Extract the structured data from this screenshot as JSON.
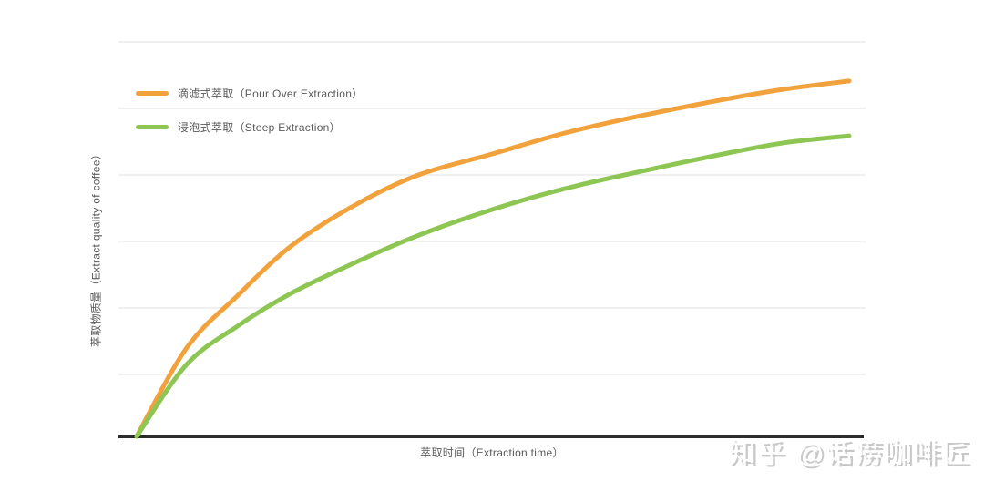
{
  "chart_data": {
    "type": "line",
    "title": "",
    "xlabel": "萃取时间（Extraction time）",
    "ylabel": "萃取物质量（Extract quality of coffee）",
    "x_ticks": [],
    "y_ticks": [],
    "axis_note": "qualitative chart: no tick labels; values normalized 0-1 of plot range",
    "grid": "6 horizontal gridlines, no vertical gridlines, thick black x-axis baseline",
    "legend_position": "top-left inside plot",
    "x_range_norm": [
      0,
      1
    ],
    "y_range_norm": [
      0,
      1
    ],
    "series": [
      {
        "name": "滴滤式萃取（Pour Over Extraction）",
        "color": "#F2A23C",
        "points": [
          [
            0.0,
            0.0
          ],
          [
            0.07,
            0.224
          ],
          [
            0.141,
            0.356
          ],
          [
            0.217,
            0.483
          ],
          [
            0.307,
            0.587
          ],
          [
            0.396,
            0.663
          ],
          [
            0.499,
            0.716
          ],
          [
            0.601,
            0.769
          ],
          [
            0.703,
            0.811
          ],
          [
            0.818,
            0.852
          ],
          [
            0.908,
            0.88
          ],
          [
            1.0,
            0.901
          ]
        ]
      },
      {
        "name": "浸泡式萃取（Steep Extraction）",
        "color": "#8DC653",
        "points": [
          [
            0.0,
            0.0
          ],
          [
            0.07,
            0.182
          ],
          [
            0.141,
            0.279
          ],
          [
            0.217,
            0.363
          ],
          [
            0.307,
            0.441
          ],
          [
            0.396,
            0.51
          ],
          [
            0.499,
            0.575
          ],
          [
            0.601,
            0.628
          ],
          [
            0.703,
            0.67
          ],
          [
            0.818,
            0.714
          ],
          [
            0.908,
            0.744
          ],
          [
            1.0,
            0.762
          ]
        ]
      }
    ]
  },
  "watermark": {
    "text": "知乎 @话痨咖啡匠"
  },
  "colors": {
    "background": "#FFFFFF",
    "pour_over": "#F2A23C",
    "steep": "#8DC653",
    "grid": "#E2E2E2",
    "axis": "#2B2B2B",
    "label_text": "#595959",
    "watermark_shadow": "#C8C8C8"
  }
}
